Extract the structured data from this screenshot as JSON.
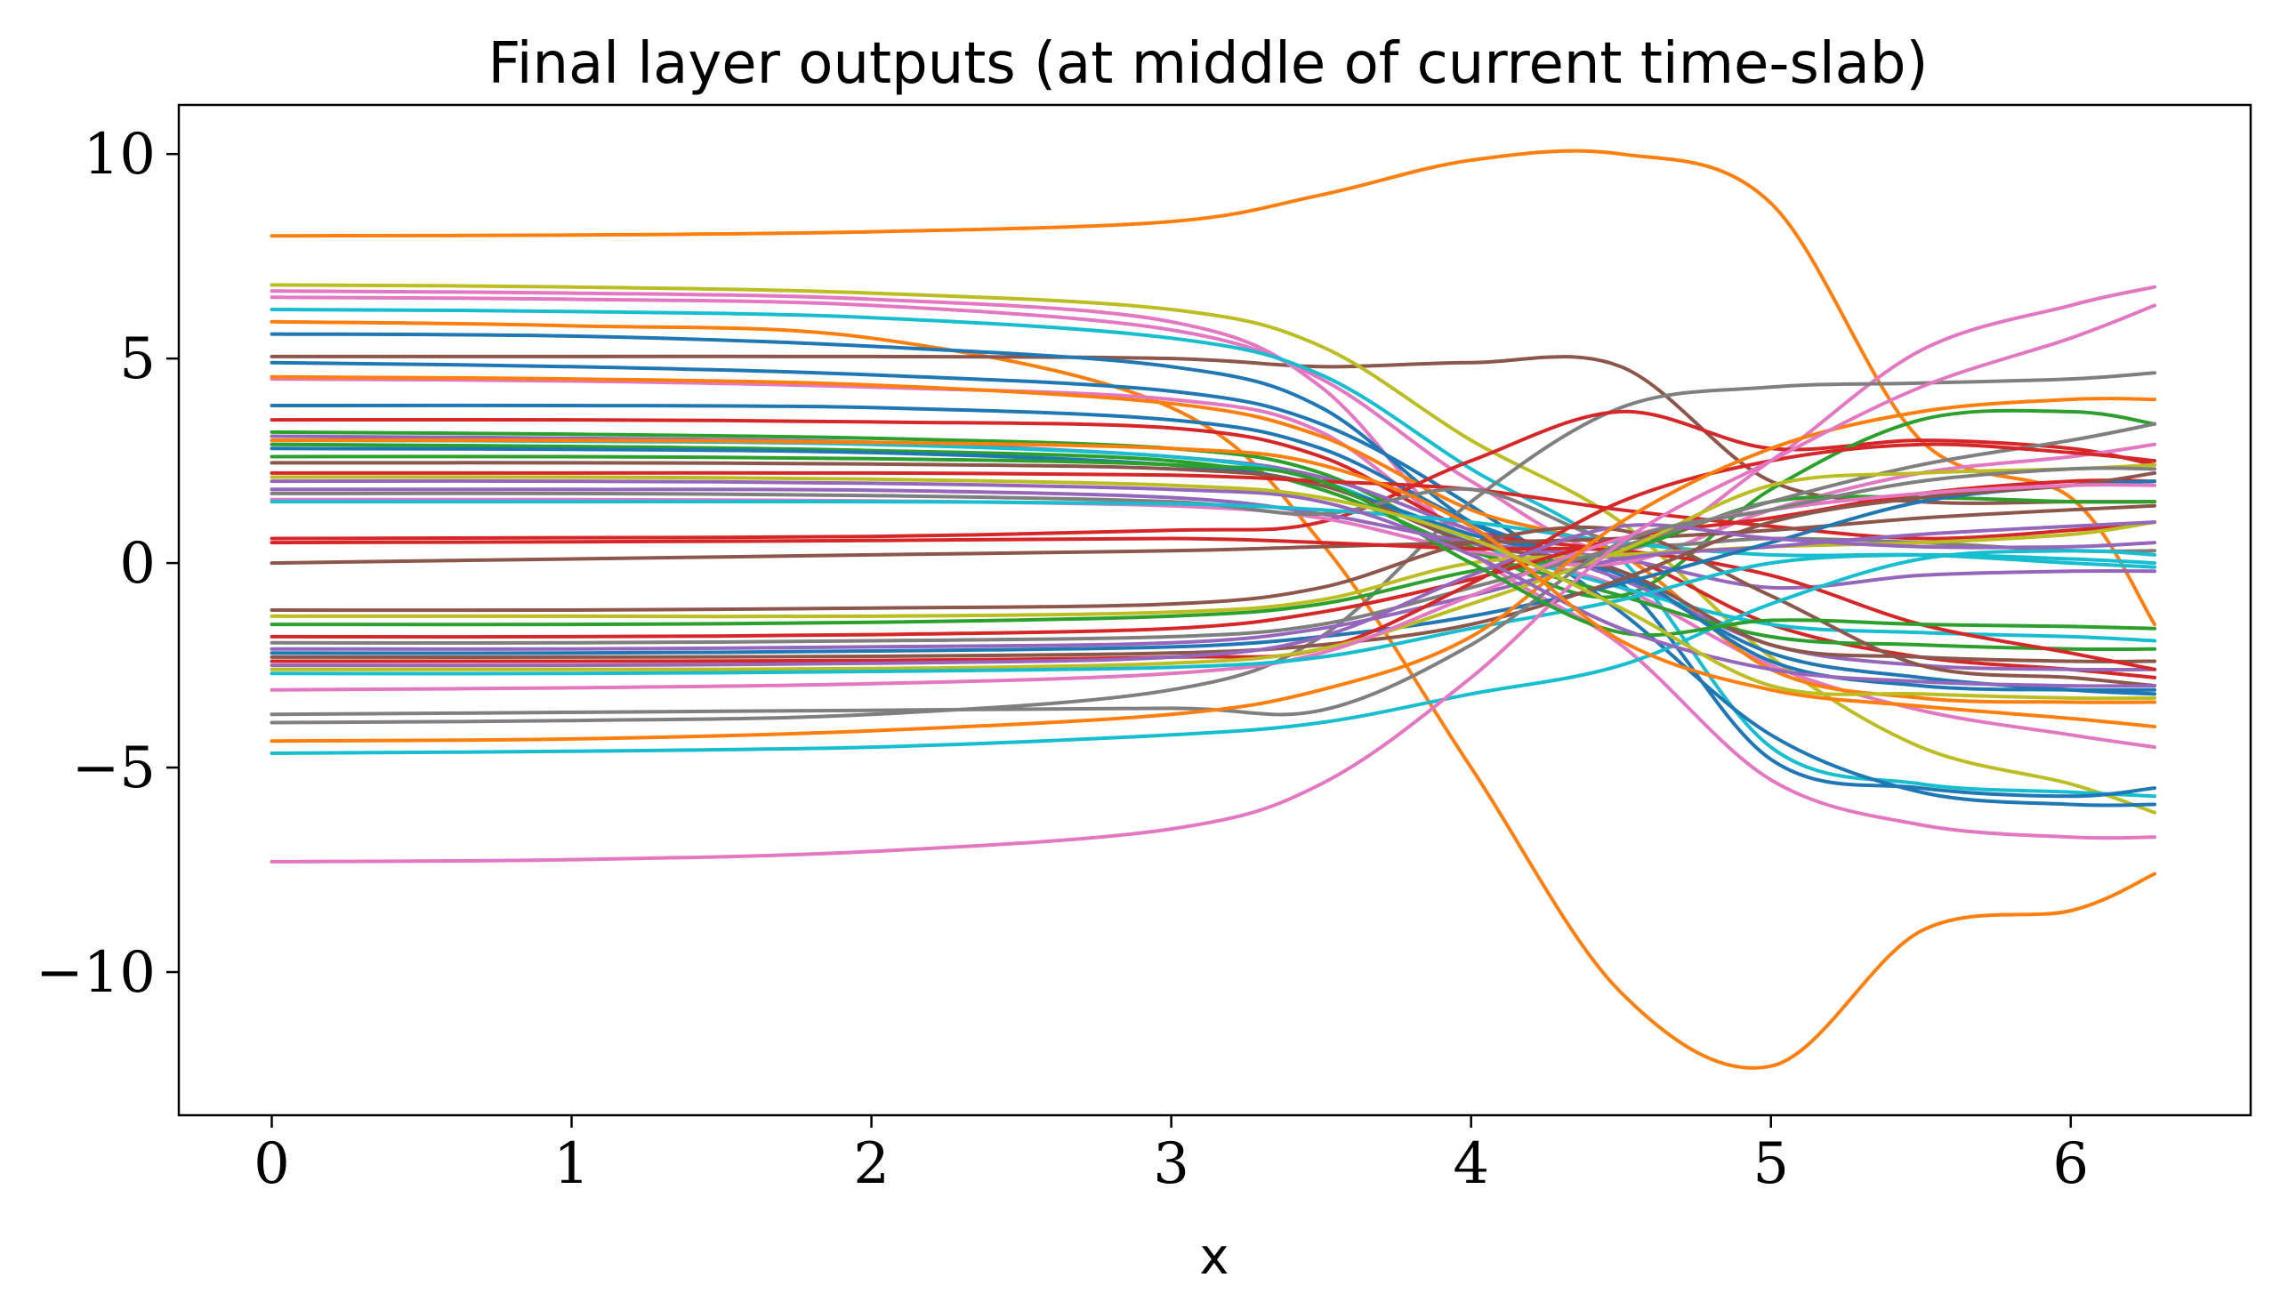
{
  "chart_data": {
    "type": "line",
    "title": "Final layer outputs (at middle of current time-slab)",
    "xlabel": "x",
    "ylabel": "",
    "xlim": [
      -0.31,
      6.6
    ],
    "ylim": [
      -13.5,
      11.2
    ],
    "xticks": [
      0,
      1,
      2,
      3,
      4,
      5,
      6
    ],
    "xtick_labels": [
      "0",
      "1",
      "2",
      "3",
      "4",
      "5",
      "6"
    ],
    "yticks": [
      10,
      5,
      0,
      -5,
      -10
    ],
    "ytick_labels": [
      "10",
      "5",
      "0",
      "−5",
      "−10"
    ],
    "grid": false,
    "x": [
      0,
      1,
      2,
      3,
      3.5,
      4,
      4.5,
      5,
      5.5,
      6,
      6.28
    ],
    "series": [
      {
        "color": "#ff7f0e",
        "values": [
          8.0,
          8.02,
          8.1,
          8.35,
          9.0,
          9.85,
          10.0,
          8.8,
          3.0,
          1.6,
          -1.5
        ]
      },
      {
        "color": "#ff7f0e",
        "values": [
          5.9,
          5.8,
          5.5,
          3.8,
          0.5,
          -5.0,
          -10.5,
          -12.3,
          -9.0,
          -8.5,
          -7.6
        ]
      },
      {
        "color": "#8c564b",
        "values": [
          5.05,
          5.05,
          5.05,
          5.0,
          4.8,
          4.9,
          4.8,
          2.0,
          1.5,
          1.5,
          1.5
        ]
      },
      {
        "color": "#bcbd22",
        "values": [
          6.8,
          6.75,
          6.6,
          6.2,
          5.3,
          3.0,
          1.0,
          -2.3,
          -4.5,
          -5.4,
          -6.1
        ]
      },
      {
        "color": "#e377c2",
        "values": [
          6.5,
          6.45,
          6.3,
          5.7,
          4.5,
          2.0,
          0.3,
          2.5,
          5.2,
          6.3,
          6.75
        ]
      },
      {
        "color": "#e377c2",
        "values": [
          6.65,
          6.6,
          6.45,
          5.9,
          4.3,
          0.3,
          -2.0,
          -5.3,
          -6.4,
          -6.7,
          -6.7
        ]
      },
      {
        "color": "#17becf",
        "values": [
          6.2,
          6.15,
          6.0,
          5.5,
          4.6,
          2.3,
          0.1,
          -4.5,
          -5.4,
          -5.6,
          -5.7
        ]
      },
      {
        "color": "#1f77b4",
        "values": [
          5.6,
          5.55,
          5.3,
          4.8,
          3.8,
          1.0,
          -0.5,
          -4.8,
          -5.5,
          -5.7,
          -5.5
        ]
      },
      {
        "color": "#1f77b4",
        "values": [
          4.9,
          4.8,
          4.6,
          4.2,
          3.4,
          1.4,
          -1.2,
          -4.2,
          -5.6,
          -5.9,
          -5.9
        ]
      },
      {
        "color": "#e377c2",
        "values": [
          4.5,
          4.45,
          4.3,
          4.0,
          3.2,
          0.6,
          -0.6,
          -2.5,
          -3.6,
          -4.2,
          -4.5
        ]
      },
      {
        "color": "#ff7f0e",
        "values": [
          4.55,
          4.5,
          4.35,
          3.9,
          3.1,
          1.3,
          0.2,
          -2.6,
          -3.3,
          -3.4,
          -3.4
        ]
      },
      {
        "color": "#7f7f7f",
        "values": [
          -3.9,
          -3.85,
          -3.7,
          -3.1,
          -1.8,
          1.5,
          3.8,
          4.3,
          4.4,
          4.5,
          4.65
        ]
      },
      {
        "color": "#1f77b4",
        "values": [
          3.85,
          3.85,
          3.8,
          3.5,
          2.8,
          1.0,
          -0.3,
          -2.2,
          -2.8,
          -3.1,
          -3.2
        ]
      },
      {
        "color": "#d62728",
        "values": [
          3.5,
          3.5,
          3.45,
          3.3,
          2.6,
          0.8,
          0.2,
          -1.5,
          -2.3,
          -2.6,
          -2.8
        ]
      },
      {
        "color": "#d62728",
        "values": [
          0.6,
          0.62,
          0.65,
          0.8,
          1.0,
          2.5,
          3.7,
          2.8,
          3.0,
          2.8,
          2.4
        ]
      },
      {
        "color": "#2ca02c",
        "values": [
          3.2,
          3.15,
          3.05,
          2.8,
          2.2,
          0.4,
          -0.8,
          1.8,
          3.5,
          3.7,
          3.4
        ]
      },
      {
        "color": "#9467bd",
        "values": [
          3.1,
          3.05,
          2.95,
          2.6,
          2.1,
          0.8,
          -0.4,
          -2.0,
          -2.5,
          -2.6,
          -2.6
        ]
      },
      {
        "color": "#17becf",
        "values": [
          3.0,
          2.98,
          2.9,
          2.6,
          2.0,
          0.5,
          -0.6,
          -1.5,
          -1.7,
          -1.8,
          -1.9
        ]
      },
      {
        "color": "#2ca02c",
        "values": [
          2.9,
          2.85,
          2.75,
          2.5,
          1.8,
          0.3,
          -0.8,
          -1.8,
          -2.0,
          -2.1,
          -2.1
        ]
      },
      {
        "color": "#1f77b4",
        "values": [
          2.8,
          2.78,
          2.7,
          2.4,
          1.9,
          0.7,
          -0.2,
          -2.4,
          -3.0,
          -3.1,
          -3.1
        ]
      },
      {
        "color": "#8c564b",
        "values": [
          2.45,
          2.45,
          2.42,
          2.3,
          1.9,
          0.5,
          -0.2,
          -2.0,
          -2.3,
          -2.4,
          -2.4
        ]
      },
      {
        "color": "#d62728",
        "values": [
          2.2,
          2.2,
          2.2,
          2.15,
          2.0,
          1.8,
          1.3,
          0.9,
          0.6,
          0.8,
          1.0
        ]
      },
      {
        "color": "#9467bd",
        "values": [
          1.8,
          1.8,
          1.78,
          1.6,
          1.2,
          0.5,
          0.1,
          -0.6,
          -0.3,
          -0.2,
          -0.2
        ]
      },
      {
        "color": "#e377c2",
        "values": [
          1.55,
          1.55,
          1.52,
          1.4,
          1.1,
          0.3,
          0.0,
          1.3,
          2.2,
          2.6,
          2.9
        ]
      },
      {
        "color": "#7f7f7f",
        "values": [
          1.7,
          1.7,
          1.65,
          1.5,
          1.2,
          1.8,
          0.5,
          0.6,
          0.5,
          0.3,
          0.3
        ]
      },
      {
        "color": "#17becf",
        "values": [
          1.5,
          1.5,
          1.5,
          1.45,
          1.3,
          1.0,
          0.5,
          0.2,
          0.2,
          0.0,
          -0.1
        ]
      },
      {
        "color": "#8c564b",
        "values": [
          0.0,
          0.1,
          0.2,
          0.3,
          0.4,
          0.5,
          0.6,
          0.8,
          1.1,
          1.3,
          1.4
        ]
      },
      {
        "color": "#d62728",
        "values": [
          0.5,
          0.52,
          0.55,
          0.6,
          0.5,
          0.35,
          0.3,
          -0.3,
          -1.5,
          -2.2,
          -2.6
        ]
      },
      {
        "color": "#8c564b",
        "values": [
          -1.15,
          -1.15,
          -1.1,
          -1.0,
          -0.6,
          0.5,
          0.8,
          -0.8,
          -2.5,
          -2.8,
          -3.0
        ]
      },
      {
        "color": "#bcbd22",
        "values": [
          -1.3,
          -1.3,
          -1.3,
          -1.2,
          -0.9,
          0.0,
          0.2,
          0.4,
          0.5,
          0.7,
          1.0
        ]
      },
      {
        "color": "#2ca02c",
        "values": [
          -1.5,
          -1.5,
          -1.45,
          -1.3,
          -1.0,
          -0.2,
          0.3,
          1.5,
          1.6,
          1.5,
          1.5
        ]
      },
      {
        "color": "#d62728",
        "values": [
          -1.8,
          -1.8,
          -1.75,
          -1.6,
          -1.2,
          -0.4,
          0.6,
          1.1,
          1.7,
          2.0,
          2.0
        ]
      },
      {
        "color": "#7f7f7f",
        "values": [
          -1.95,
          -1.95,
          -1.9,
          -1.8,
          -1.5,
          -0.6,
          0.4,
          1.5,
          2.4,
          3.0,
          3.4
        ]
      },
      {
        "color": "#9467bd",
        "values": [
          -2.1,
          -2.1,
          -2.05,
          -1.95,
          -1.6,
          -0.8,
          0.1,
          0.4,
          0.7,
          0.9,
          1.0
        ]
      },
      {
        "color": "#1f77b4",
        "values": [
          -2.2,
          -2.2,
          -2.15,
          -2.05,
          -1.8,
          -1.3,
          -0.5,
          0.5,
          1.5,
          1.9,
          2.0
        ]
      },
      {
        "color": "#8c564b",
        "values": [
          -2.3,
          -2.3,
          -2.28,
          -2.2,
          -2.0,
          -1.5,
          -0.4,
          1.0,
          1.6,
          1.9,
          2.2
        ]
      },
      {
        "color": "#d62728",
        "values": [
          -2.4,
          -2.4,
          -2.38,
          -2.3,
          -2.1,
          -0.5,
          1.5,
          2.5,
          2.9,
          2.7,
          2.5
        ]
      },
      {
        "color": "#bcbd22",
        "values": [
          -2.6,
          -2.6,
          -2.58,
          -2.45,
          -2.1,
          -1.0,
          0.3,
          1.9,
          2.2,
          2.3,
          2.4
        ]
      },
      {
        "color": "#e377c2",
        "values": [
          -3.1,
          -3.05,
          -2.95,
          -2.7,
          -2.2,
          -0.8,
          0.6,
          1.3,
          1.7,
          1.9,
          1.9
        ]
      },
      {
        "color": "#17becf",
        "values": [
          -2.7,
          -2.7,
          -2.65,
          -2.55,
          -2.3,
          -1.6,
          -0.9,
          0.0,
          0.2,
          0.1,
          0.0
        ]
      },
      {
        "color": "#9467bd",
        "values": [
          -2.5,
          -2.5,
          -2.45,
          -2.3,
          -1.8,
          -0.3,
          0.9,
          0.6,
          0.4,
          0.4,
          0.5
        ]
      },
      {
        "color": "#7f7f7f",
        "values": [
          -3.7,
          -3.65,
          -3.6,
          -3.55,
          -3.6,
          -2.0,
          0.5,
          1.3,
          2.0,
          2.3,
          2.3
        ]
      },
      {
        "color": "#ff7f0e",
        "values": [
          -4.35,
          -4.3,
          -4.1,
          -3.7,
          -3.1,
          -1.8,
          1.0,
          2.8,
          3.7,
          4.0,
          4.0
        ]
      },
      {
        "color": "#17becf",
        "values": [
          -4.65,
          -4.6,
          -4.5,
          -4.2,
          -3.9,
          -3.2,
          -2.5,
          -1.0,
          0.1,
          0.3,
          0.2
        ]
      },
      {
        "color": "#e377c2",
        "values": [
          -7.3,
          -7.25,
          -7.05,
          -6.5,
          -5.4,
          -2.8,
          0.5,
          2.5,
          4.3,
          5.5,
          6.3
        ]
      },
      {
        "color": "#2ca02c",
        "values": [
          2.6,
          2.6,
          2.55,
          2.4,
          2.0,
          0.0,
          -1.7,
          -1.4,
          -1.5,
          -1.55,
          -1.6
        ]
      },
      {
        "color": "#9467bd",
        "values": [
          2.0,
          2.0,
          1.95,
          1.8,
          1.5,
          0.2,
          -1.6,
          -2.6,
          -2.9,
          -3.0,
          -3.0
        ]
      },
      {
        "color": "#ff7f0e",
        "values": [
          3.0,
          3.0,
          2.95,
          2.8,
          2.4,
          0.9,
          -1.9,
          -3.1,
          -3.5,
          -3.8,
          -4.0
        ]
      },
      {
        "color": "#bcbd22",
        "values": [
          2.1,
          2.1,
          2.05,
          1.9,
          1.6,
          0.6,
          -1.1,
          -3.0,
          -3.2,
          -3.3,
          -3.3
        ]
      }
    ]
  }
}
